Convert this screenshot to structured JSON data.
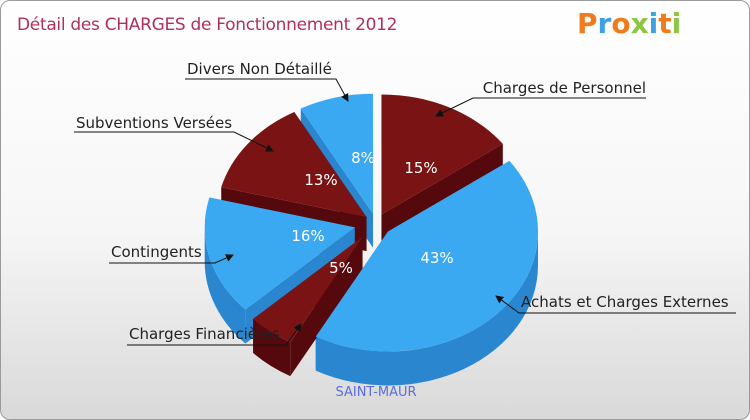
{
  "chart_data": {
    "type": "pie",
    "title": "Détail des CHARGES de Fonctionnement 2012",
    "subtitle": "SAINT-MAUR",
    "categories": [
      "Charges de Personnel",
      "Achats et Charges Externes",
      "Charges Financières",
      "Contingents",
      "Subventions Versées",
      "Divers Non Détaillé"
    ],
    "values": [
      15,
      43,
      5,
      16,
      13,
      8
    ],
    "labels": [
      "15%",
      "43%",
      "5%",
      "16%",
      "13%",
      "8%"
    ],
    "colors": [
      "#7a1414",
      "#3ba9f2",
      "#7a1414",
      "#3ba9f2",
      "#7a1414",
      "#3ba9f2"
    ]
  },
  "logo": {
    "text": "Proxiti",
    "colors": [
      "#f07b1d",
      "#3aa3e0",
      "#f07b1d",
      "#8dc63f",
      "#3aa3e0",
      "#f07b1d",
      "#8dc63f"
    ]
  }
}
